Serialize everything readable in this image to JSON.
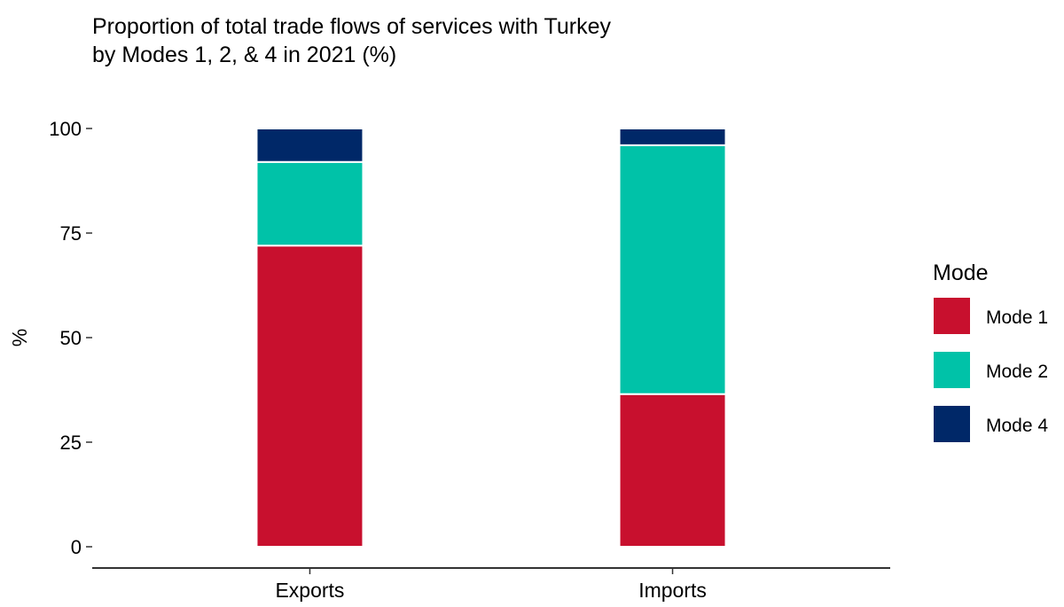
{
  "chart_data": {
    "type": "bar",
    "stacked": true,
    "title": "Proportion of total trade flows of services with Turkey",
    "subtitle": "by Modes 1, 2, & 4 in 2021 (%)",
    "xlabel": "",
    "ylabel": "%",
    "ylim": [
      0,
      100
    ],
    "yticks": [
      0,
      25,
      50,
      75,
      100
    ],
    "categories": [
      "Exports",
      "Imports"
    ],
    "series": [
      {
        "name": "Mode 1",
        "color": "#C8102E",
        "values": [
          72,
          36.5
        ]
      },
      {
        "name": "Mode 2",
        "color": "#00C2A8",
        "values": [
          20,
          59.5
        ]
      },
      {
        "name": "Mode 4",
        "color": "#002868",
        "values": [
          8,
          4
        ]
      }
    ],
    "legend": {
      "title": "Mode",
      "placement": "right"
    },
    "grid": false
  }
}
